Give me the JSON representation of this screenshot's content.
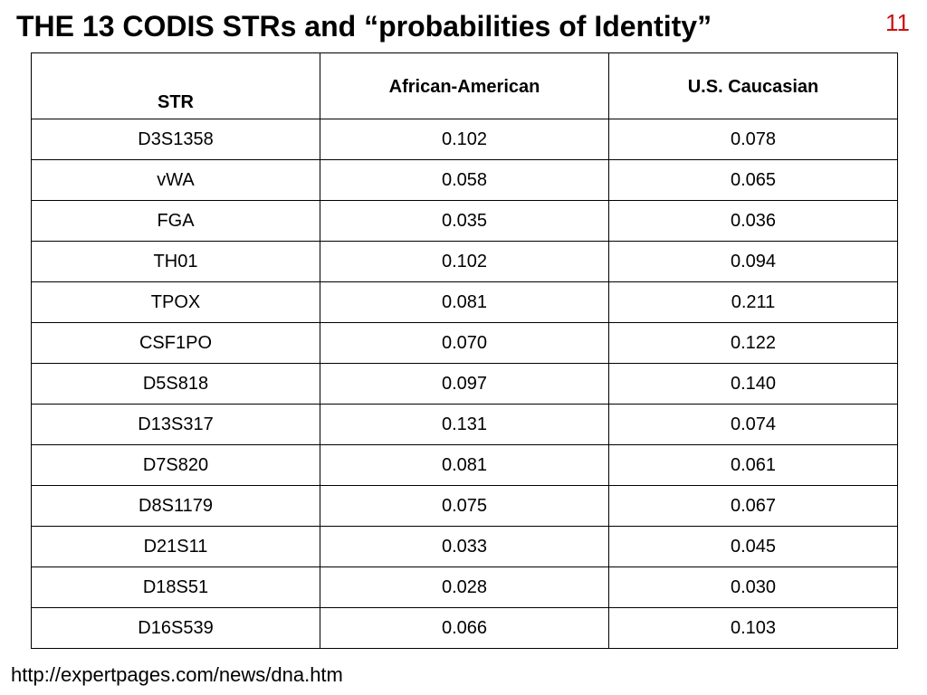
{
  "slide": {
    "title": "THE 13 CODIS STRs and “probabilities of Identity”",
    "page_number": "11",
    "source_url": "http://expertpages.com/news/dna.htm",
    "accent_color": "#cc1111"
  },
  "table": {
    "headers": [
      "STR",
      "African-American",
      "U.S. Caucasian"
    ],
    "rows": [
      [
        "D3S1358",
        "0.102",
        "0.078"
      ],
      [
        "vWA",
        "0.058",
        "0.065"
      ],
      [
        "FGA",
        "0.035",
        "0.036"
      ],
      [
        "TH01",
        "0.102",
        "0.094"
      ],
      [
        "TPOX",
        "0.081",
        "0.211"
      ],
      [
        "CSF1PO",
        "0.070",
        "0.122"
      ],
      [
        "D5S818",
        "0.097",
        "0.140"
      ],
      [
        "D13S317",
        "0.131",
        "0.074"
      ],
      [
        "D7S820",
        "0.081",
        "0.061"
      ],
      [
        "D8S1179",
        "0.075",
        "0.067"
      ],
      [
        "D21S11",
        "0.033",
        "0.045"
      ],
      [
        "D18S51",
        "0.028",
        "0.030"
      ],
      [
        "D16S539",
        "0.066",
        "0.103"
      ]
    ]
  }
}
